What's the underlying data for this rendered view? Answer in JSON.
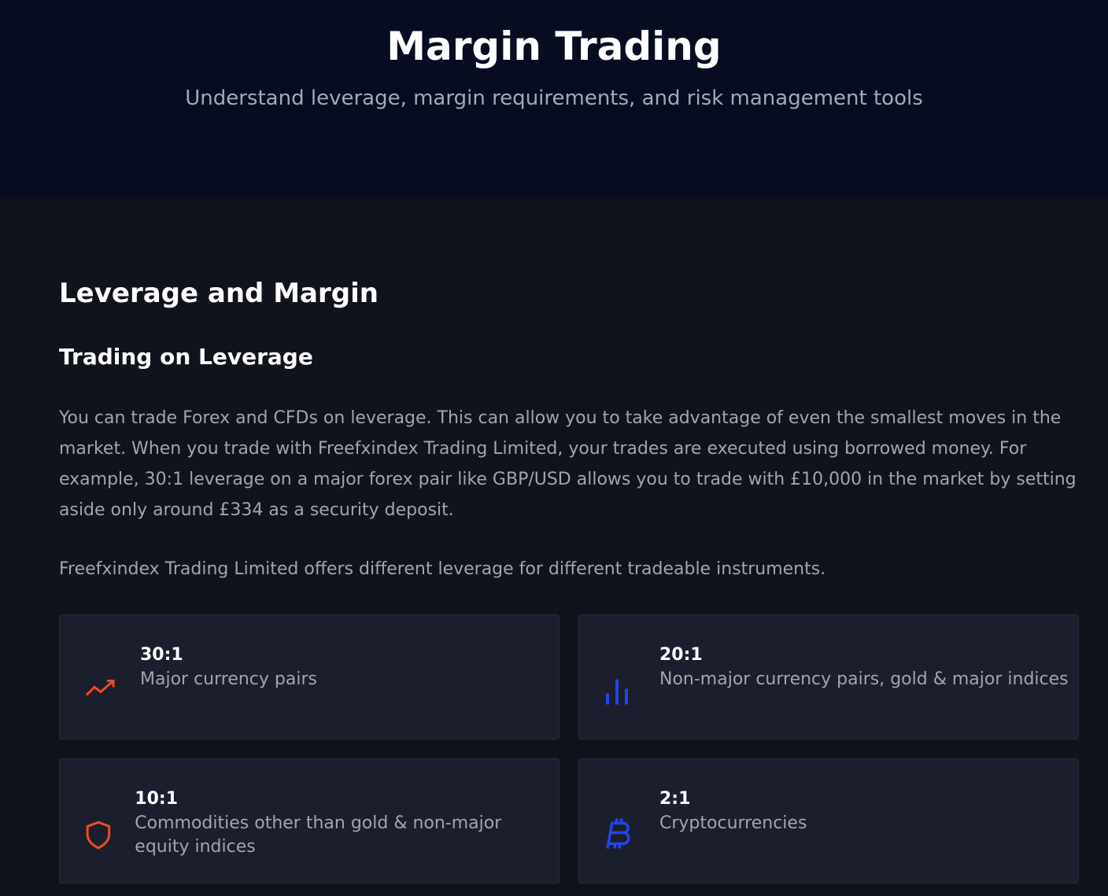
{
  "header": {
    "title": "Margin Trading",
    "subtitle": "Understand leverage, margin requirements, and risk management tools"
  },
  "section": {
    "heading": "Leverage and Margin",
    "subheading": "Trading on Leverage",
    "paragraphs": [
      "You can trade Forex and CFDs on leverage. This can allow you to take advantage of even the smallest moves in the market. When you trade with Freefxindex Trading Limited, your trades are executed using borrowed money. For example, 30:1 leverage on a major forex pair like GBP/USD allows you to trade with £10,000 in the market by setting aside only around £334 as a security deposit.",
      "Freefxindex Trading Limited offers different leverage for different tradeable instruments."
    ],
    "cards": [
      {
        "ratio": "30:1",
        "label": "Major currency pairs"
      },
      {
        "ratio": "20:1",
        "label": "Non-major currency pairs, gold & major indices"
      },
      {
        "ratio": "10:1",
        "label": "Commodities other than gold & non-major equity indices"
      },
      {
        "ratio": "2:1",
        "label": "Cryptocurrencies"
      }
    ]
  }
}
